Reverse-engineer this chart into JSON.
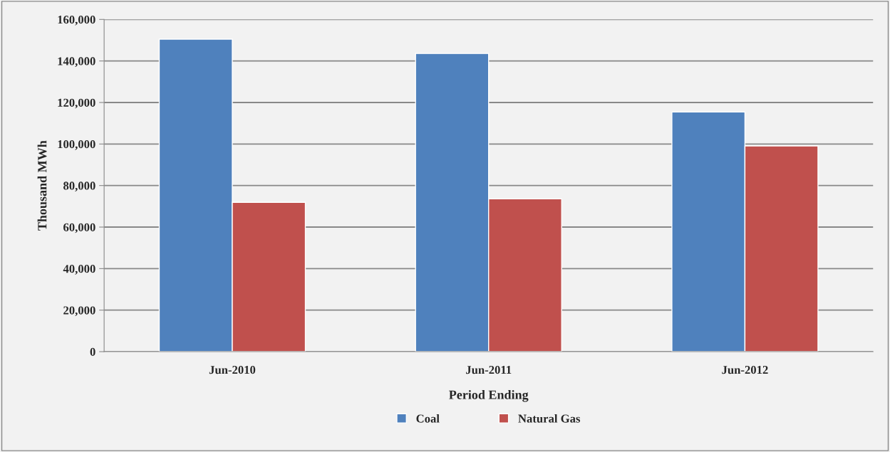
{
  "chart_data": {
    "type": "bar",
    "xlabel": "Period Ending",
    "ylabel": "Thousand MWh",
    "categories": [
      "Jun-2010",
      "Jun-2011",
      "Jun-2012"
    ],
    "series": [
      {
        "name": "Coal",
        "color": "#4f81bd",
        "values": [
          150500,
          143600,
          115400
        ]
      },
      {
        "name": "Natural Gas",
        "color": "#c0504d",
        "values": [
          71900,
          73600,
          99100
        ]
      }
    ],
    "ylim": [
      0,
      160000
    ],
    "yticks": [
      0,
      {
        "value": 20000,
        "label": "20,000"
      },
      {
        "value": 40000,
        "label": "40,000"
      },
      {
        "value": 60000,
        "label": "60,000"
      },
      {
        "value": 80000,
        "label": "80,000"
      },
      {
        "value": 100000,
        "label": "100,000"
      },
      {
        "value": 120000,
        "label": "120,000"
      },
      {
        "value": 140000,
        "label": "140,000"
      },
      {
        "value": 160000,
        "label": "160,000"
      }
    ],
    "grid": "y",
    "legend": "bottom"
  }
}
